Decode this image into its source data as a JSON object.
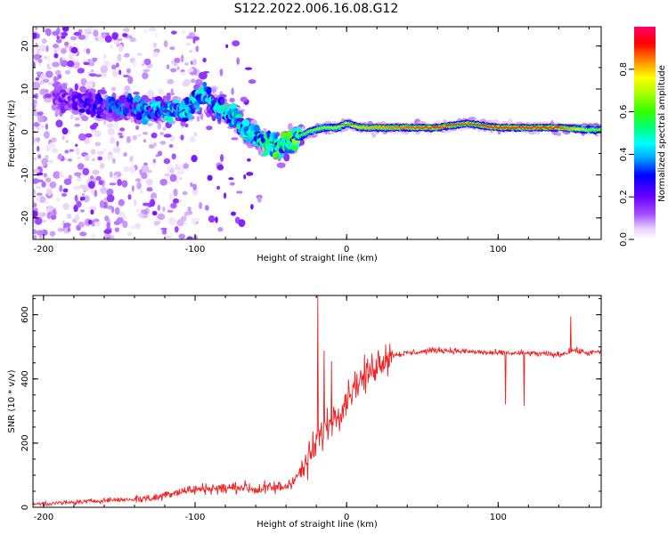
{
  "figure_title": "S122.2022.006.16.08.G12",
  "chart_data": [
    {
      "type": "heatmap",
      "xlabel": "Height of straight line (km)",
      "ylabel": "Frequency (Hz)",
      "xlim": [
        -207,
        168
      ],
      "ylim": [
        -25,
        24.5
      ],
      "xticks": [
        -200,
        -100,
        0,
        100
      ],
      "yticks": [
        -20,
        -10,
        0,
        10,
        20
      ],
      "colorbar": {
        "label": "Normalized spectral amplitude",
        "range": [
          0,
          1
        ],
        "ticks": [
          "0.0",
          "0.2",
          "0.4",
          "0.6",
          "0.8"
        ],
        "colormap": [
          "#ffffff",
          "#e6d2f8",
          "#a34cff",
          "#6a00ff",
          "#0000ff",
          "#00a0ff",
          "#00ffff",
          "#00ff80",
          "#33ff00",
          "#a0ff00",
          "#ffff00",
          "#ff8800",
          "#ff0000",
          "#ff0066"
        ]
      },
      "ridge": {
        "x": [
          -190,
          -160,
          -130,
          -105,
          -95,
          -85,
          -75,
          -65,
          -55,
          -45,
          -35,
          -25,
          -15,
          -5,
          0,
          10,
          30,
          60,
          80,
          100,
          120,
          140,
          160,
          168
        ],
        "y": [
          8,
          6,
          5,
          5,
          9,
          6,
          4,
          0,
          -2,
          -4,
          -2,
          0,
          1,
          1,
          2,
          1,
          1,
          1,
          2,
          1,
          1,
          1,
          0.5,
          0.5
        ],
        "peak_amplitude": [
          0.2,
          0.3,
          0.4,
          0.45,
          0.45,
          0.45,
          0.45,
          0.5,
          0.5,
          0.55,
          0.6,
          0.65,
          0.7,
          0.7,
          0.75,
          0.8,
          0.85,
          0.9,
          0.85,
          0.9,
          0.9,
          0.9,
          0.7,
          0.65
        ]
      }
    },
    {
      "type": "line",
      "xlabel": "Height of straight line (km)",
      "ylabel": "SNR (10 * v/v)",
      "xlim": [
        -207,
        168
      ],
      "ylim": [
        0,
        660
      ],
      "xticks": [
        -200,
        -100,
        0,
        100
      ],
      "yticks": [
        0,
        200,
        400,
        600
      ],
      "series": [
        {
          "color": "#ee2222",
          "x": [
            -207,
            -180,
            -160,
            -140,
            -125,
            -120,
            -110,
            -100,
            -90,
            -80,
            -70,
            -60,
            -50,
            -40,
            -30,
            -25,
            -20,
            -15,
            -10,
            -5,
            0,
            5,
            10,
            15,
            20,
            25,
            30,
            40,
            60,
            80,
            100,
            120,
            140,
            150,
            160,
            168
          ],
          "y": [
            10,
            15,
            22,
            25,
            30,
            40,
            50,
            55,
            60,
            58,
            65,
            55,
            60,
            65,
            110,
            150,
            200,
            240,
            270,
            300,
            340,
            380,
            400,
            420,
            450,
            465,
            475,
            480,
            490,
            485,
            480,
            480,
            475,
            490,
            480,
            485
          ]
        }
      ],
      "annotations": [
        {
          "x": -19,
          "y": 660
        },
        {
          "x": -15,
          "y": 488
        },
        {
          "x": -10,
          "y": 455
        },
        {
          "x": 98,
          "y": 480
        },
        {
          "x": 105,
          "y": 320
        },
        {
          "x": 117,
          "y": 315
        },
        {
          "x": 148,
          "y": 595
        }
      ]
    }
  ]
}
